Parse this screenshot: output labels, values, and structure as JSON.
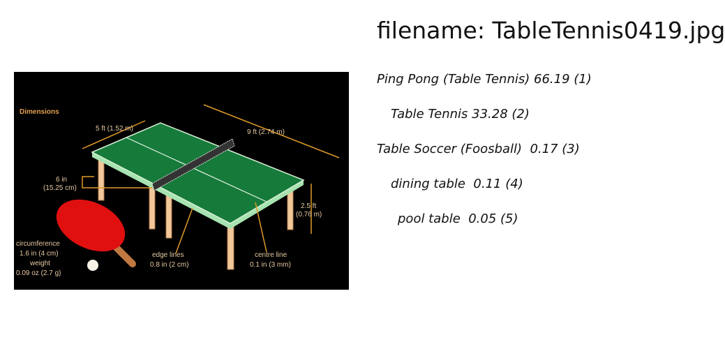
{
  "header": {
    "filename": "filename: TableTennis0419.jpg"
  },
  "image": {
    "labels": [
      "Dimensions",
      "5 ft (1.52 m)",
      "9 ft (2.74 m)",
      "6 in",
      "(15.25 cm)",
      "2.5 ft",
      "(0.76 m)",
      "circumference",
      "1.6 in (4 cm)",
      "weight",
      "0.09 oz (2.7 g)",
      "edge lines",
      "0.8 in (2 cm)",
      "centre line",
      "0.1 in (3 mm)"
    ]
  },
  "predictions": [
    "Ping Pong (Table Tennis) 66.19 (1)",
    "Table Tennis 33.28 (2)",
    "Table Soccer (Foosball)  0.17 (3)",
    "dining table  0.11 (4)",
    "pool table  0.05 (5)"
  ]
}
